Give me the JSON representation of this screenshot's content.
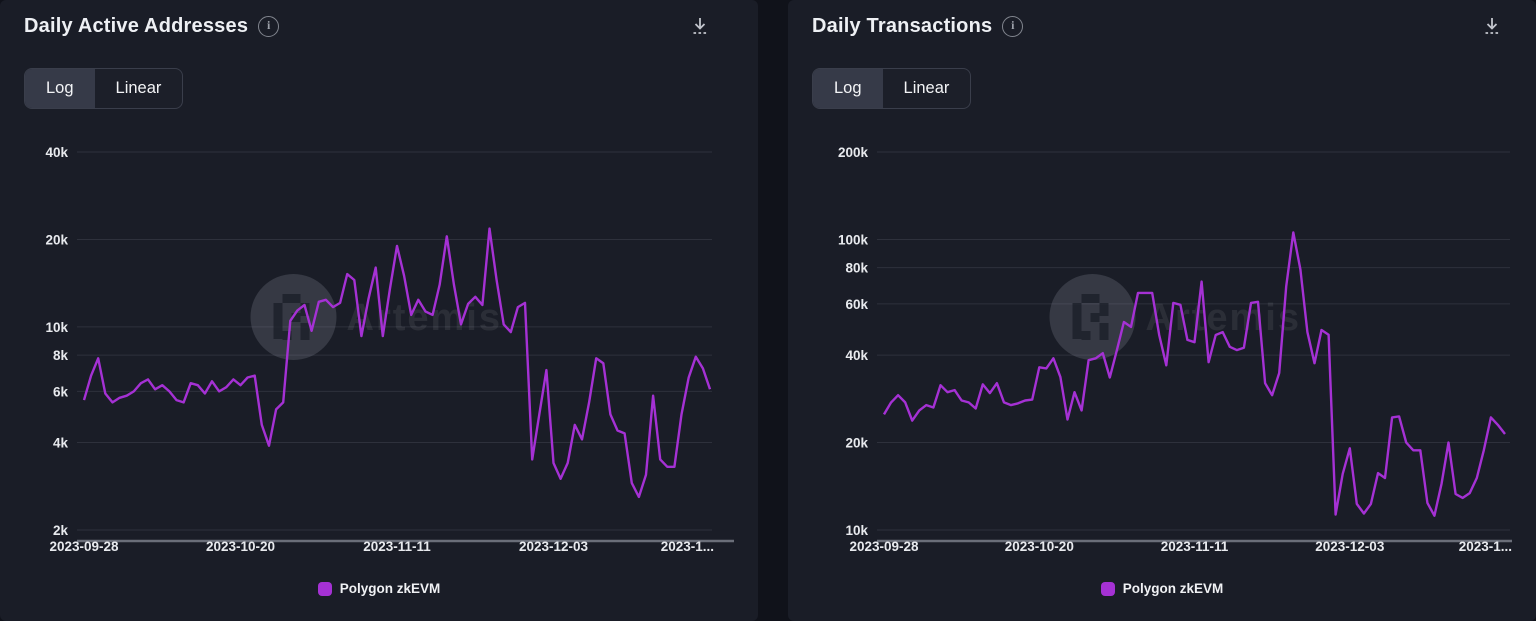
{
  "colors": {
    "panel_bg": "#1a1d27",
    "page_bg": "#10121a",
    "line": "#a531d4",
    "grid": "#2e313c",
    "axis": "#6a6e79",
    "text": "#e8eaee"
  },
  "icons": {
    "info": "info-icon",
    "download": "download-icon",
    "legend_swatch": "legend-swatch"
  },
  "watermark": {
    "text": "Artemis"
  },
  "panels": [
    {
      "title": "Daily Active Addresses",
      "toggle": {
        "options": [
          "Log",
          "Linear"
        ],
        "active": "Log"
      },
      "legend": {
        "label": "Polygon zkEVM",
        "color": "#a531d4"
      }
    },
    {
      "title": "Daily Transactions",
      "toggle": {
        "options": [
          "Log",
          "Linear"
        ],
        "active": "Log"
      },
      "legend": {
        "label": "Polygon zkEVM",
        "color": "#a531d4"
      }
    }
  ],
  "chart_data": [
    {
      "type": "line",
      "title": "Daily Active Addresses",
      "y_scale": "log",
      "y_range": [
        2000,
        40000
      ],
      "grid": true,
      "legend_position": "bottom",
      "y_ticks": [
        {
          "label": "40k",
          "value": 40000
        },
        {
          "label": "20k",
          "value": 20000
        },
        {
          "label": "10k",
          "value": 10000
        },
        {
          "label": "8k",
          "value": 8000
        },
        {
          "label": "6k",
          "value": 6000
        },
        {
          "label": "4k",
          "value": 4000
        },
        {
          "label": "2k",
          "value": 2000
        }
      ],
      "x_ticks": [
        {
          "label": "2023-09-28",
          "day": 0
        },
        {
          "label": "2023-10-20",
          "day": 22
        },
        {
          "label": "2023-11-11",
          "day": 44
        },
        {
          "label": "2023-12-03",
          "day": 66
        },
        {
          "label": "2023-1...",
          "day": 88
        }
      ],
      "series": [
        {
          "name": "Polygon zkEVM",
          "color": "#a531d4",
          "values": [
            5600,
            6800,
            7800,
            5900,
            5500,
            5700,
            5800,
            6000,
            6400,
            6600,
            6100,
            6300,
            6000,
            5600,
            5500,
            6400,
            6300,
            5900,
            6500,
            6000,
            6200,
            6600,
            6300,
            6700,
            6800,
            4600,
            3900,
            5200,
            5500,
            10500,
            11400,
            11900,
            9700,
            12200,
            12400,
            11700,
            12100,
            15200,
            14500,
            9300,
            12500,
            16000,
            9300,
            13500,
            19000,
            15000,
            11000,
            12400,
            11300,
            11000,
            14000,
            20500,
            14000,
            10200,
            12000,
            12700,
            11900,
            21800,
            14500,
            10200,
            9600,
            11700,
            12100,
            3500,
            5000,
            7100,
            3400,
            3000,
            3400,
            4600,
            4100,
            5500,
            7800,
            7500,
            5000,
            4400,
            4300,
            2900,
            2600,
            3100,
            5800,
            3500,
            3300,
            3300,
            5000,
            6700,
            7900,
            7200,
            6100
          ]
        }
      ]
    },
    {
      "type": "line",
      "title": "Daily Transactions",
      "y_scale": "log",
      "y_range": [
        10000,
        200000
      ],
      "grid": true,
      "legend_position": "bottom",
      "y_ticks": [
        {
          "label": "200k",
          "value": 200000
        },
        {
          "label": "100k",
          "value": 100000
        },
        {
          "label": "80k",
          "value": 80000
        },
        {
          "label": "60k",
          "value": 60000
        },
        {
          "label": "40k",
          "value": 40000
        },
        {
          "label": "20k",
          "value": 20000
        },
        {
          "label": "10k",
          "value": 10000
        }
      ],
      "x_ticks": [
        {
          "label": "2023-09-28",
          "day": 0
        },
        {
          "label": "2023-10-20",
          "day": 22
        },
        {
          "label": "2023-11-11",
          "day": 44
        },
        {
          "label": "2023-12-03",
          "day": 66
        },
        {
          "label": "2023-1...",
          "day": 88
        }
      ],
      "series": [
        {
          "name": "Polygon zkEVM",
          "color": "#a531d4",
          "values": [
            25000,
            27500,
            29100,
            27500,
            23800,
            25800,
            26900,
            26400,
            31500,
            29800,
            30300,
            27900,
            27500,
            26200,
            31700,
            29600,
            32000,
            27500,
            26900,
            27300,
            27900,
            28100,
            36300,
            36000,
            39000,
            33600,
            24000,
            29800,
            25800,
            38400,
            39000,
            40600,
            33500,
            41600,
            52000,
            50000,
            65500,
            65500,
            65500,
            46900,
            36900,
            60500,
            59600,
            45100,
            44300,
            71600,
            37800,
            46900,
            48000,
            42700,
            41600,
            42400,
            60500,
            61000,
            32000,
            29100,
            34700,
            68900,
            105700,
            78800,
            48000,
            37500,
            48800,
            47000,
            11300,
            15600,
            19100,
            12300,
            11400,
            12300,
            15700,
            15100,
            24400,
            24600,
            20000,
            18800,
            18800,
            12400,
            11200,
            14400,
            20000,
            13300,
            12900,
            13400,
            15100,
            18800,
            24400,
            23000,
            21400
          ]
        }
      ]
    }
  ]
}
